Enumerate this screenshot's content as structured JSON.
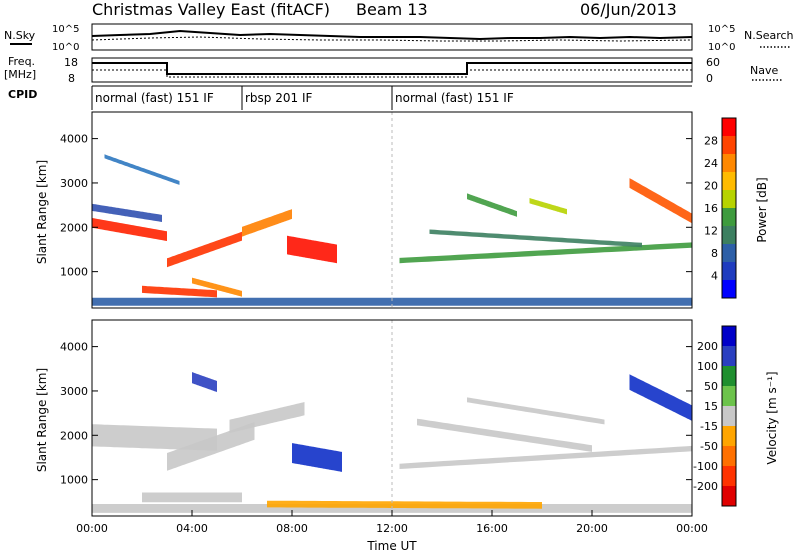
{
  "header": {
    "title": "Christmas Valley East (fitACF)",
    "beam": "Beam 13",
    "date": "06/Jun/2013"
  },
  "noise_panel": {
    "left_label": "N.Sky",
    "left_ticks": [
      "10^5",
      "10^0"
    ],
    "right_ticks": [
      "10^5",
      "10^0"
    ],
    "right_label": "N.Search"
  },
  "freq_panel": {
    "left_label_line1": "Freq.",
    "left_label_line2": "[MHz]",
    "left_ticks": [
      "18",
      "8"
    ],
    "right_ticks": [
      "60",
      "0"
    ],
    "right_label": "Nave"
  },
  "cpid_panel": {
    "label": "CPID",
    "segments": [
      {
        "name": "normal (fast) 151 IF",
        "start_hour": 0,
        "end_hour": 6
      },
      {
        "name": "rbsp 201 IF",
        "start_hour": 6,
        "end_hour": 12
      },
      {
        "name": "normal (fast) 151 IF",
        "start_hour": 12,
        "end_hour": 24
      }
    ]
  },
  "chart_data": [
    {
      "type": "heatmap",
      "name": "power",
      "ylabel": "Slant Range [km]",
      "yticks": [
        "4000",
        "3000",
        "2000",
        "1000"
      ],
      "ylim": [
        180,
        4600
      ],
      "xlim": [
        0,
        24
      ],
      "colorbar": {
        "label": "Power [dB]",
        "ticks": [
          "28",
          "24",
          "20",
          "16",
          "12",
          "8",
          "4"
        ],
        "colors": [
          "#ff0000",
          "#ff4400",
          "#ff8800",
          "#ffbb00",
          "#b7d300",
          "#3e9b3e",
          "#3c7f60",
          "#2d5fa7",
          "#1f3cbf",
          "#0000ff"
        ]
      },
      "bands": [
        {
          "t0": 0.0,
          "t1": 3.0,
          "r0": 2100,
          "r1": 1800,
          "w": 220,
          "color": "#ff2200"
        },
        {
          "t0": 3.0,
          "t1": 6.0,
          "r0": 1200,
          "r1": 1800,
          "w": 200,
          "color": "#ff3300"
        },
        {
          "t0": 6.0,
          "t1": 8.0,
          "r0": 1900,
          "r1": 2300,
          "w": 220,
          "color": "#ff8000"
        },
        {
          "t0": 7.8,
          "t1": 9.8,
          "r0": 1600,
          "r1": 1400,
          "w": 420,
          "color": "#ff1100"
        },
        {
          "t0": 0.0,
          "t1": 2.8,
          "r0": 2450,
          "r1": 2200,
          "w": 160,
          "color": "#3050b0"
        },
        {
          "t0": 0.5,
          "t1": 3.5,
          "r0": 3600,
          "r1": 3000,
          "w": 90,
          "color": "#2e78c0"
        },
        {
          "t0": 2.0,
          "t1": 5.0,
          "r0": 600,
          "r1": 500,
          "w": 160,
          "color": "#ff3300"
        },
        {
          "t0": 4.0,
          "t1": 6.0,
          "r0": 800,
          "r1": 500,
          "w": 130,
          "color": "#ff8800"
        },
        {
          "t0": 12.3,
          "t1": 24.0,
          "r0": 1250,
          "r1": 1600,
          "w": 120,
          "color": "#3e9b3e"
        },
        {
          "t0": 13.5,
          "t1": 22.0,
          "r0": 1900,
          "r1": 1600,
          "w": 100,
          "color": "#3c7f60"
        },
        {
          "t0": 15.0,
          "t1": 17.0,
          "r0": 2700,
          "r1": 2300,
          "w": 130,
          "color": "#3e9b3e"
        },
        {
          "t0": 17.5,
          "t1": 19.0,
          "r0": 2600,
          "r1": 2350,
          "w": 120,
          "color": "#b7d300"
        },
        {
          "t0": 21.5,
          "t1": 24.0,
          "r0": 3000,
          "r1": 2200,
          "w": 220,
          "color": "#ff5500"
        },
        {
          "t0": 0.0,
          "t1": 24.0,
          "r0": 320,
          "r1": 320,
          "w": 180,
          "color": "#2d5fa7"
        }
      ]
    },
    {
      "type": "heatmap",
      "name": "velocity",
      "ylabel": "Slant Range [km]",
      "yticks": [
        "4000",
        "3000",
        "2000",
        "1000"
      ],
      "ylim": [
        180,
        4600
      ],
      "xlim": [
        0,
        24
      ],
      "xlabel": "Time UT",
      "xticks": [
        "00:00",
        "04:00",
        "08:00",
        "12:00",
        "16:00",
        "20:00",
        "00:00"
      ],
      "colorbar": {
        "label": "Velocity [m s⁻¹]",
        "ticks": [
          "200",
          "100",
          "50",
          "15",
          "-15",
          "-50",
          "-100",
          "-200"
        ],
        "colors": [
          "#0000c8",
          "#2a3fc0",
          "#1f8f2f",
          "#6cc34b",
          "#c8c8c8",
          "#ffa500",
          "#ff7000",
          "#ff3300",
          "#e00000"
        ]
      },
      "bands": [
        {
          "t0": 0.0,
          "t1": 5.0,
          "r0": 2000,
          "r1": 1900,
          "w": 500,
          "color": "#c8c8c8"
        },
        {
          "t0": 3.0,
          "t1": 6.5,
          "r0": 1400,
          "r1": 2100,
          "w": 400,
          "color": "#c8c8c8"
        },
        {
          "t0": 5.5,
          "t1": 8.5,
          "r0": 2200,
          "r1": 2600,
          "w": 300,
          "color": "#c8c8c8"
        },
        {
          "t0": 8.0,
          "t1": 10.0,
          "r0": 1600,
          "r1": 1400,
          "w": 450,
          "color": "#1030c8"
        },
        {
          "t0": 2.0,
          "t1": 6.0,
          "r0": 600,
          "r1": 600,
          "w": 220,
          "color": "#c8c8c8"
        },
        {
          "t0": 4.0,
          "t1": 5.0,
          "r0": 3300,
          "r1": 3100,
          "w": 250,
          "color": "#2a3fc0"
        },
        {
          "t0": 12.3,
          "t1": 24.0,
          "r0": 1300,
          "r1": 1700,
          "w": 120,
          "color": "#c8c8c8"
        },
        {
          "t0": 13.0,
          "t1": 20.0,
          "r0": 2300,
          "r1": 1700,
          "w": 150,
          "color": "#c8c8c8"
        },
        {
          "t0": 15.0,
          "t1": 20.5,
          "r0": 2800,
          "r1": 2300,
          "w": 110,
          "color": "#c8c8c8"
        },
        {
          "t0": 21.5,
          "t1": 24.0,
          "r0": 3200,
          "r1": 2500,
          "w": 350,
          "color": "#1030c8"
        },
        {
          "t0": 0.0,
          "t1": 24.0,
          "r0": 350,
          "r1": 350,
          "w": 200,
          "color": "#c8c8c8"
        },
        {
          "t0": 7.0,
          "t1": 18.0,
          "r0": 450,
          "r1": 420,
          "w": 150,
          "color": "#ffa500"
        }
      ]
    }
  ]
}
